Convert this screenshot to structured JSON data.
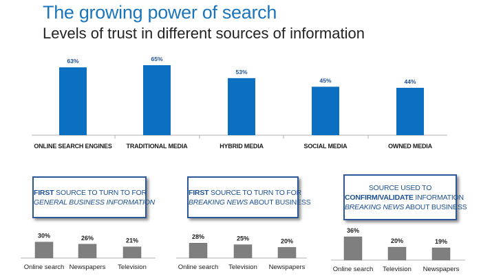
{
  "header": {
    "title": "The growing power of search",
    "subtitle": "Levels of trust in different sources of information"
  },
  "colors": {
    "title": "#1b75bb",
    "main_bar": "#0b6fc2",
    "small_bar": "#7f7f7f",
    "callout_border": "#2b5797",
    "callout_text": "#1b4f93",
    "axis": "#b0b0b0"
  },
  "panels": [
    {
      "line1_strong": "FIRST",
      "line1_rest": " SOURCE TO TURN TO FOR",
      "line2_italic": "GENERAL BUSINESS INFORMATION",
      "line2_rest": ""
    },
    {
      "line1_strong": "FIRST",
      "line1_rest": " SOURCE TO TURN TO FOR",
      "line2_italic": "BREAKING NEWS",
      "line2_rest": " ABOUT BUSINESS"
    },
    {
      "line0": "SOURCE USED TO",
      "line1_strong": "CONFIRM/VALIDATE",
      "line1_rest": " INFORMATION",
      "line2_italic": "BREAKING NEWS",
      "line2_rest": " ABOUT BUSINESS"
    }
  ],
  "chart_data": [
    {
      "type": "bar",
      "title": "Levels of trust in different sources of information",
      "categories": [
        "ONLINE SEARCH ENGINES",
        "TRADITIONAL MEDIA",
        "HYBRID MEDIA",
        "SOCIAL MEDIA",
        "OWNED MEDIA"
      ],
      "values": [
        63,
        65,
        53,
        45,
        44
      ],
      "value_labels": [
        "63%",
        "65%",
        "53%",
        "45%",
        "44%"
      ],
      "ylim": [
        0,
        65
      ],
      "grid": false,
      "legend": "none"
    },
    {
      "type": "bar",
      "title": "FIRST SOURCE TO TURN TO FOR GENERAL BUSINESS INFORMATION",
      "categories": [
        "Online search",
        "Newspapers",
        "Television"
      ],
      "values": [
        30,
        26,
        21
      ],
      "value_labels": [
        "30%",
        "26%",
        "21%"
      ],
      "ylim": [
        0,
        36
      ],
      "grid": false,
      "legend": "none"
    },
    {
      "type": "bar",
      "title": "FIRST SOURCE TO TURN TO FOR BREAKING NEWS ABOUT BUSINESS",
      "categories": [
        "Online search",
        "Television",
        "Newspapers"
      ],
      "values": [
        28,
        25,
        20
      ],
      "value_labels": [
        "28%",
        "25%",
        "20%"
      ],
      "ylim": [
        0,
        36
      ],
      "grid": false,
      "legend": "none"
    },
    {
      "type": "bar",
      "title": "SOURCE USED TO CONFIRM/VALIDATE INFORMATION BREAKING NEWS ABOUT BUSINESS",
      "categories": [
        "Online search",
        "Television",
        "Newspapers"
      ],
      "values": [
        36,
        20,
        19
      ],
      "value_labels": [
        "36%",
        "20%",
        "19%"
      ],
      "ylim": [
        0,
        36
      ],
      "grid": false,
      "legend": "none"
    }
  ]
}
